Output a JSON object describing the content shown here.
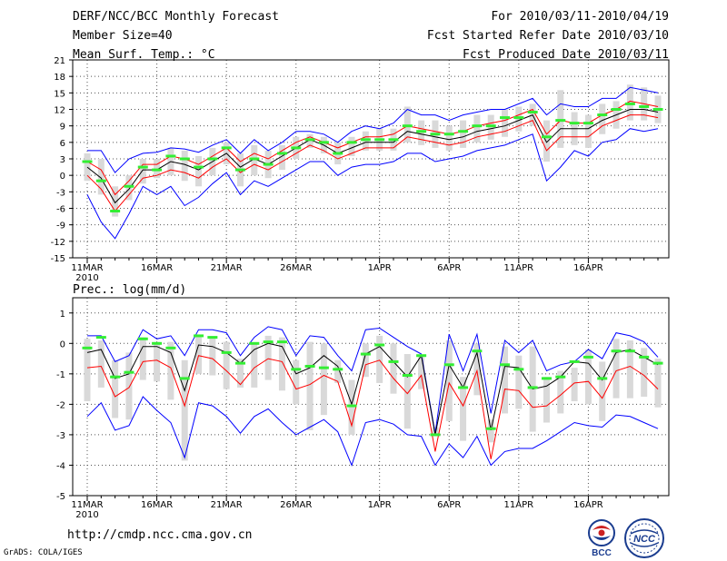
{
  "header": {
    "title": "DERF/NCC/BCC Monthly Forecast",
    "member_size": "Member Size=40",
    "variable": "Mean Surf. Temp.: °C",
    "period": "For 2010/03/11-2010/04/19",
    "started": "Fcst Started Refer Date 2010/03/10",
    "produced": "Fcst Produced Date 2010/03/11"
  },
  "footer": {
    "url": "http://cmdp.ncc.cma.gov.cn",
    "credit": "GrADS: COLA/IGES",
    "logo_bcc": "BCC",
    "logo_ncc": "NCC"
  },
  "colors": {
    "envelope": "#0000ff",
    "spread": "#ff0000",
    "mean": "#000000",
    "box": "#d9d9d9",
    "marker": "#33ee33"
  },
  "chart_data": [
    {
      "type": "line",
      "title": "Mean Surf. Temp.: °C",
      "x_tick_labels": [
        "11MAR",
        "16MAR",
        "21MAR",
        "26MAR",
        "1APR",
        "6APR",
        "11APR",
        "16APR"
      ],
      "x_tick_index": [
        0,
        5,
        10,
        15,
        21,
        26,
        31,
        36
      ],
      "year_label": "2010",
      "ylim": [
        -15,
        21
      ],
      "yticks": [
        -15,
        -12,
        -9,
        -6,
        -3,
        0,
        3,
        6,
        9,
        12,
        15,
        18,
        21
      ],
      "series": [
        {
          "name": "max",
          "values": [
            4.5,
            4.5,
            0.5,
            3,
            4,
            4.2,
            5,
            4.8,
            4.2,
            5.5,
            6.5,
            4,
            6.5,
            4.5,
            6,
            8,
            8,
            7.5,
            6,
            8,
            9,
            8.5,
            9.5,
            12,
            11,
            11,
            10,
            11,
            11.5,
            12,
            12,
            13,
            14,
            11,
            13,
            12.5,
            12.5,
            14,
            14,
            16,
            15.5,
            15
          ]
        },
        {
          "name": "upper",
          "values": [
            2.5,
            1,
            -3.5,
            -1,
            2,
            2,
            3.5,
            3,
            2,
            3.5,
            5,
            2.5,
            4,
            3,
            4.5,
            6,
            7,
            6,
            5,
            6,
            7,
            7,
            7.5,
            9,
            8.5,
            8,
            7.5,
            8,
            9,
            9.5,
            10,
            11,
            12,
            7.5,
            10,
            9.5,
            9.5,
            11,
            12,
            13.5,
            13,
            12.5
          ]
        },
        {
          "name": "mean",
          "values": [
            1.5,
            -0.5,
            -5,
            -2.5,
            1,
            1,
            2.5,
            2,
            1,
            2.5,
            4,
            1.5,
            3,
            2,
            3.5,
            5,
            6.5,
            5.5,
            4,
            5,
            6,
            6,
            6,
            8,
            7.5,
            7,
            6.5,
            7,
            8,
            8.5,
            9,
            10,
            11,
            6,
            8.5,
            8.5,
            8.5,
            10,
            11,
            12,
            12,
            11.5
          ]
        },
        {
          "name": "lower",
          "values": [
            0,
            -2.5,
            -6.5,
            -3.5,
            -0.5,
            0,
            1,
            0.5,
            -0.5,
            1.5,
            3,
            0.5,
            2,
            1,
            2.5,
            4,
            5.5,
            4.5,
            3,
            4,
            5,
            5,
            5,
            7,
            6.5,
            6,
            5.5,
            6,
            7,
            7.5,
            8,
            9,
            10,
            4.5,
            7,
            7,
            7,
            9,
            10,
            11,
            11,
            10.5
          ]
        },
        {
          "name": "min",
          "values": [
            -3.5,
            -8.5,
            -11.5,
            -7,
            -2,
            -3.5,
            -2,
            -5.5,
            -4,
            -1.5,
            0.5,
            -3.5,
            -1,
            -2,
            -0.5,
            1,
            2.5,
            2.5,
            0,
            1.5,
            2,
            2,
            2.5,
            4,
            4,
            2.5,
            3,
            3.5,
            4.5,
            5,
            5.5,
            6.5,
            7.5,
            -1,
            1.5,
            4.5,
            3.5,
            6,
            6.5,
            8.5,
            8,
            8.5
          ]
        },
        {
          "name": "marker",
          "values": [
            2.5,
            -1,
            -6.5,
            -2,
            1.5,
            1,
            3.5,
            3,
            1.5,
            3,
            5,
            1,
            3,
            2,
            4,
            5,
            6.5,
            6,
            4,
            6,
            6.5,
            6.5,
            6.5,
            9,
            8,
            7.5,
            7.5,
            8,
            9,
            9,
            10.5,
            10.5,
            11.5,
            7,
            10,
            9.5,
            9.5,
            11,
            12,
            13,
            12.5,
            12
          ]
        },
        {
          "name": "box_high",
          "values": [
            4,
            3,
            -2,
            0,
            3,
            3,
            5,
            4.5,
            3.5,
            5,
            6,
            4,
            5.5,
            4.5,
            5.5,
            7,
            7.5,
            7,
            6,
            7,
            8,
            8.5,
            8.5,
            12.5,
            10,
            10,
            9,
            10,
            11,
            11,
            12,
            12.5,
            13,
            10,
            15.5,
            11.5,
            11,
            13,
            13.5,
            16.5,
            16,
            14.5
          ]
        },
        {
          "name": "box_low",
          "values": [
            -1,
            -3.5,
            -7.5,
            -4.5,
            -1.5,
            -0.5,
            0,
            -1,
            -2,
            0,
            2,
            -2,
            0,
            -0.5,
            1,
            3,
            5,
            4,
            2,
            3.5,
            4.5,
            4.5,
            4.5,
            6,
            5.5,
            5,
            4.5,
            5,
            6,
            6.5,
            7,
            8,
            9,
            2.5,
            5,
            5.5,
            5,
            7.5,
            8.5,
            10,
            10,
            9.5
          ]
        }
      ]
    },
    {
      "type": "line",
      "title": "Prec.: log(mm/d)",
      "x_tick_labels": [
        "11MAR",
        "16MAR",
        "21MAR",
        "26MAR",
        "1APR",
        "6APR",
        "11APR",
        "16APR"
      ],
      "x_tick_index": [
        0,
        5,
        10,
        15,
        21,
        26,
        31,
        36
      ],
      "year_label": "2010",
      "ylim": [
        -5,
        1.5
      ],
      "yticks": [
        -5,
        -4,
        -3,
        -2,
        -1,
        0,
        1
      ],
      "series": [
        {
          "name": "max",
          "values": [
            0.25,
            0.25,
            -0.6,
            -0.4,
            0.45,
            0.15,
            0.25,
            -0.4,
            0.45,
            0.45,
            0.35,
            -0.4,
            0.2,
            0.55,
            0.45,
            -0.4,
            0.25,
            0.2,
            -0.4,
            -0.9,
            0.45,
            0.5,
            0.2,
            -0.1,
            -0.35,
            -2.95,
            0.3,
            -0.9,
            0.3,
            -2.3,
            0.1,
            -0.3,
            0.1,
            -0.9,
            -0.7,
            -0.6,
            -0.2,
            -0.5,
            0.35,
            0.25,
            0.05,
            -0.45
          ]
        },
        {
          "name": "mean",
          "values": [
            -0.3,
            -0.2,
            -1.15,
            -1.0,
            -0.1,
            -0.1,
            -0.3,
            -1.55,
            -0.05,
            -0.1,
            -0.3,
            -0.65,
            -0.2,
            0.0,
            -0.1,
            -1.0,
            -0.8,
            -0.4,
            -0.75,
            -2.0,
            -0.35,
            -0.1,
            -0.6,
            -1.1,
            -0.4,
            -3.0,
            -0.7,
            -1.45,
            -0.3,
            -2.85,
            -0.75,
            -0.8,
            -1.5,
            -1.4,
            -1.1,
            -0.6,
            -0.65,
            -1.2,
            -0.3,
            -0.2,
            -0.45,
            -0.7
          ]
        },
        {
          "name": "lower",
          "values": [
            -0.8,
            -0.75,
            -1.75,
            -1.45,
            -0.6,
            -0.55,
            -0.8,
            -2.05,
            -0.4,
            -0.5,
            -0.9,
            -1.35,
            -0.8,
            -0.5,
            -0.6,
            -1.5,
            -1.35,
            -1.05,
            -1.25,
            -2.7,
            -0.7,
            -0.55,
            -1.15,
            -1.65,
            -1.05,
            -3.55,
            -1.3,
            -2.05,
            -0.9,
            -3.8,
            -1.5,
            -1.55,
            -2.1,
            -2.05,
            -1.7,
            -1.3,
            -1.25,
            -1.8,
            -0.9,
            -0.75,
            -1.05,
            -1.5
          ]
        },
        {
          "name": "min",
          "values": [
            -2.4,
            -1.95,
            -2.85,
            -2.7,
            -1.75,
            -2.2,
            -2.6,
            -3.75,
            -1.95,
            -2.05,
            -2.4,
            -2.95,
            -2.4,
            -2.15,
            -2.6,
            -3.0,
            -2.75,
            -2.5,
            -2.9,
            -4.0,
            -2.6,
            -2.5,
            -2.65,
            -3.0,
            -3.05,
            -4.0,
            -3.3,
            -3.75,
            -3.05,
            -4.0,
            -3.55,
            -3.45,
            -3.45,
            -3.2,
            -2.9,
            -2.6,
            -2.7,
            -2.75,
            -2.35,
            -2.4,
            -2.6,
            -2.8
          ]
        },
        {
          "name": "marker",
          "values": [
            -0.15,
            0.2,
            -1.1,
            -0.95,
            0.15,
            0.0,
            -0.15,
            -1.15,
            0.25,
            0.2,
            -0.3,
            -0.65,
            0.0,
            0.05,
            0.05,
            -0.85,
            -0.75,
            -0.8,
            -0.85,
            -2.05,
            -0.35,
            -0.05,
            -0.6,
            -1.05,
            -0.4,
            -3.0,
            -0.7,
            -1.45,
            -0.25,
            -2.8,
            -0.7,
            -0.85,
            -1.45,
            -1.15,
            -1.1,
            -0.6,
            -0.45,
            -1.15,
            -0.25,
            -0.25,
            -0.45,
            -0.65
          ]
        },
        {
          "name": "box_high",
          "values": [
            0.15,
            0.1,
            -0.55,
            -0.3,
            0.2,
            0.05,
            0.05,
            -0.55,
            0.25,
            0.2,
            0.05,
            -0.5,
            0.0,
            0.25,
            0.2,
            -0.55,
            0.05,
            0.0,
            -0.55,
            -1.2,
            0.0,
            0.25,
            0.0,
            -0.35,
            -0.45,
            -2.75,
            0.1,
            -1.1,
            0.0,
            -2.5,
            -0.1,
            -0.4,
            -0.1,
            -1.1,
            -0.9,
            -0.8,
            -0.2,
            -0.6,
            0.15,
            0.1,
            -0.15,
            -0.5
          ]
        },
        {
          "name": "box_low",
          "values": [
            -1.9,
            -1.45,
            -2.45,
            -2.5,
            -1.2,
            -1.25,
            -1.85,
            -3.85,
            -1.0,
            -1.05,
            -1.5,
            -1.45,
            -1.45,
            -1.2,
            -1.55,
            -2.0,
            -2.85,
            -2.35,
            -1.3,
            -3.0,
            -1.1,
            -1.3,
            -1.65,
            -2.8,
            -1.5,
            -3.05,
            -2.55,
            -3.2,
            -1.7,
            -3.25,
            -2.3,
            -2.15,
            -2.9,
            -2.6,
            -2.3,
            -1.9,
            -2.0,
            -2.55,
            -1.8,
            -1.8,
            -1.75,
            -2.1
          ]
        }
      ]
    }
  ]
}
